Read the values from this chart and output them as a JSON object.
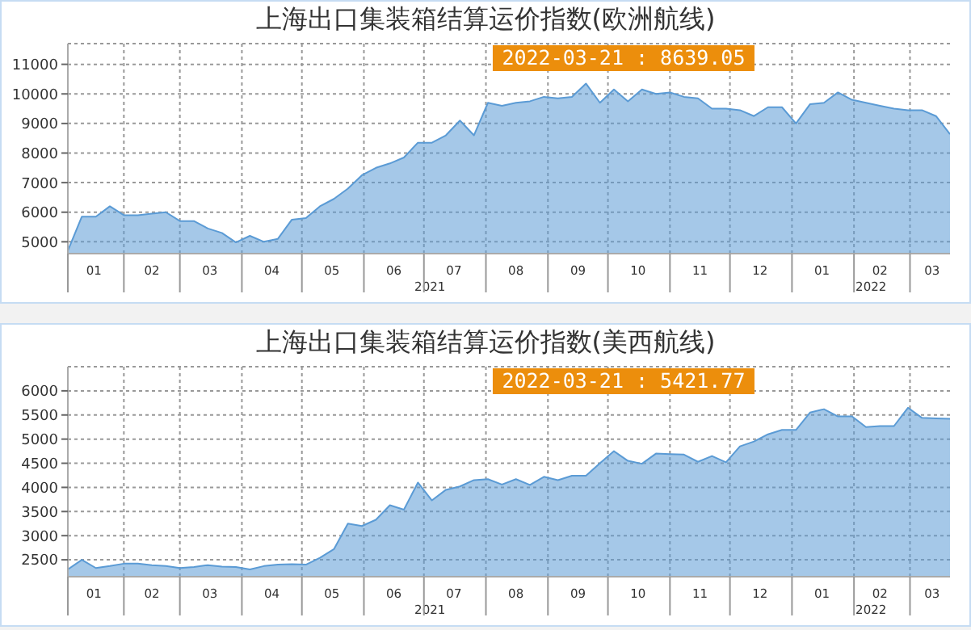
{
  "chart_data": [
    {
      "type": "area",
      "title": "上海出口集装箱结算运价指数(欧洲航线)",
      "x": [
        "2021-01-04",
        "2021-01-11",
        "2021-01-18",
        "2021-01-25",
        "2021-02-01",
        "2021-02-08",
        "2021-02-15",
        "2021-02-22",
        "2021-03-01",
        "2021-03-08",
        "2021-03-15",
        "2021-03-22",
        "2021-03-29",
        "2021-04-05",
        "2021-04-12",
        "2021-04-19",
        "2021-04-26",
        "2021-05-03",
        "2021-05-10",
        "2021-05-17",
        "2021-05-24",
        "2021-05-31",
        "2021-06-07",
        "2021-06-14",
        "2021-06-21",
        "2021-06-28",
        "2021-07-05",
        "2021-07-12",
        "2021-07-19",
        "2021-07-26",
        "2021-08-02",
        "2021-08-09",
        "2021-08-16",
        "2021-08-23",
        "2021-08-30",
        "2021-09-06",
        "2021-09-13",
        "2021-09-20",
        "2021-09-27",
        "2021-10-04",
        "2021-10-11",
        "2021-10-18",
        "2021-10-25",
        "2021-11-01",
        "2021-11-08",
        "2021-11-15",
        "2021-11-22",
        "2021-11-29",
        "2021-12-06",
        "2021-12-13",
        "2021-12-20",
        "2021-12-27",
        "2022-01-03",
        "2022-01-10",
        "2022-01-17",
        "2022-01-24",
        "2022-01-31",
        "2022-02-07",
        "2022-02-14",
        "2022-02-21",
        "2022-02-28",
        "2022-03-07",
        "2022-03-14",
        "2022-03-21"
      ],
      "series": [
        {
          "color": "#5b9bd5",
          "values": [
            4700,
            5850,
            5850,
            6200,
            5900,
            5900,
            5950,
            6000,
            5700,
            5700,
            5450,
            5300,
            4980,
            5200,
            5000,
            5100,
            5750,
            5800,
            6200,
            6450,
            6800,
            7250,
            7500,
            7650,
            7850,
            8350,
            8350,
            8600,
            9100,
            8600,
            9700,
            9600,
            9700,
            9750,
            9900,
            9850,
            9900,
            10350,
            9700,
            10150,
            9750,
            10150,
            10000,
            10050,
            9900,
            9850,
            9500,
            9500,
            9450,
            9250,
            9550,
            9550,
            9000,
            9650,
            9700,
            10050,
            9800,
            9700,
            9600,
            9500,
            9450,
            9450,
            9250,
            8639.05
          ]
        }
      ],
      "xlim": [
        "2021-01-04",
        "2022-03-21"
      ],
      "xticks": [
        {
          "value": "2021-01-04",
          "label": null
        },
        {
          "value": "2021-01-17",
          "label": "01"
        },
        {
          "value": "2021-02-01",
          "label": null
        },
        {
          "value": "2021-02-15",
          "label": "02"
        },
        {
          "value": "2021-03-01",
          "label": null
        },
        {
          "value": "2021-03-16",
          "label": "03"
        },
        {
          "value": "2021-04-01",
          "label": null
        },
        {
          "value": "2021-04-16",
          "label": "04"
        },
        {
          "value": "2021-05-01",
          "label": null
        },
        {
          "value": "2021-05-16",
          "label": "05"
        },
        {
          "value": "2021-06-01",
          "label": null
        },
        {
          "value": "2021-06-16",
          "label": "06"
        },
        {
          "value": "2021-07-01",
          "label": null
        },
        {
          "value": "2021-07-16",
          "label": "07"
        },
        {
          "value": "2021-08-01",
          "label": null
        },
        {
          "value": "2021-08-16",
          "label": "08"
        },
        {
          "value": "2021-09-01",
          "label": null
        },
        {
          "value": "2021-09-16",
          "label": "09"
        },
        {
          "value": "2021-10-01",
          "label": null
        },
        {
          "value": "2021-10-16",
          "label": "10"
        },
        {
          "value": "2021-11-01",
          "label": null
        },
        {
          "value": "2021-11-16",
          "label": "11"
        },
        {
          "value": "2021-12-01",
          "label": null
        },
        {
          "value": "2021-12-16",
          "label": "12"
        },
        {
          "value": "2022-01-01",
          "label": null
        },
        {
          "value": "2022-01-16",
          "label": "01"
        },
        {
          "value": "2022-02-01",
          "label": null
        },
        {
          "value": "2022-02-14",
          "label": "02"
        },
        {
          "value": "2022-03-01",
          "label": null
        },
        {
          "value": "2022-03-12",
          "label": "03"
        }
      ],
      "ylim": [
        4600,
        11700
      ],
      "yticks": [
        5000,
        6000,
        7000,
        8000,
        9000,
        10000,
        11000
      ],
      "grid": true,
      "annotations": [
        "2022-03-21 : 8639.05",
        "2021",
        "2022"
      ]
    },
    {
      "type": "area",
      "title": "上海出口集装箱结算运价指数(美西航线)",
      "x": [
        "2021-01-04",
        "2021-01-11",
        "2021-01-18",
        "2021-01-25",
        "2021-02-01",
        "2021-02-08",
        "2021-02-15",
        "2021-02-22",
        "2021-03-01",
        "2021-03-08",
        "2021-03-15",
        "2021-03-22",
        "2021-03-29",
        "2021-04-05",
        "2021-04-12",
        "2021-04-19",
        "2021-04-26",
        "2021-05-03",
        "2021-05-10",
        "2021-05-17",
        "2021-05-24",
        "2021-05-31",
        "2021-06-07",
        "2021-06-14",
        "2021-06-21",
        "2021-06-28",
        "2021-07-05",
        "2021-07-12",
        "2021-07-19",
        "2021-07-26",
        "2021-08-02",
        "2021-08-09",
        "2021-08-16",
        "2021-08-23",
        "2021-08-30",
        "2021-09-06",
        "2021-09-13",
        "2021-09-20",
        "2021-09-27",
        "2021-10-04",
        "2021-10-11",
        "2021-10-18",
        "2021-10-25",
        "2021-11-01",
        "2021-11-08",
        "2021-11-15",
        "2021-11-22",
        "2021-11-29",
        "2021-12-06",
        "2021-12-13",
        "2021-12-20",
        "2021-12-27",
        "2022-01-03",
        "2022-01-10",
        "2022-01-17",
        "2022-01-24",
        "2022-01-31",
        "2022-02-07",
        "2022-02-14",
        "2022-02-21",
        "2022-02-28",
        "2022-03-07",
        "2022-03-14",
        "2022-03-21"
      ],
      "series": [
        {
          "color": "#5b9bd5",
          "values": [
            2300,
            2500,
            2330,
            2370,
            2420,
            2420,
            2390,
            2370,
            2330,
            2350,
            2390,
            2360,
            2350,
            2300,
            2370,
            2400,
            2410,
            2400,
            2540,
            2720,
            3250,
            3200,
            3330,
            3630,
            3540,
            4100,
            3730,
            3950,
            4020,
            4150,
            4170,
            4060,
            4170,
            4050,
            4220,
            4150,
            4240,
            4240,
            4500,
            4750,
            4550,
            4490,
            4700,
            4690,
            4680,
            4530,
            4650,
            4520,
            4850,
            4950,
            5100,
            5190,
            5190,
            5550,
            5620,
            5470,
            5470,
            5250,
            5270,
            5270,
            5650,
            5440,
            5430,
            5421.77
          ]
        }
      ],
      "xlim": [
        "2021-01-04",
        "2022-03-21"
      ],
      "xticks": [
        {
          "value": "2021-01-04",
          "label": null
        },
        {
          "value": "2021-01-17",
          "label": "01"
        },
        {
          "value": "2021-02-01",
          "label": null
        },
        {
          "value": "2021-02-15",
          "label": "02"
        },
        {
          "value": "2021-03-01",
          "label": null
        },
        {
          "value": "2021-03-16",
          "label": "03"
        },
        {
          "value": "2021-04-01",
          "label": null
        },
        {
          "value": "2021-04-16",
          "label": "04"
        },
        {
          "value": "2021-05-01",
          "label": null
        },
        {
          "value": "2021-05-16",
          "label": "05"
        },
        {
          "value": "2021-06-01",
          "label": null
        },
        {
          "value": "2021-06-16",
          "label": "06"
        },
        {
          "value": "2021-07-01",
          "label": null
        },
        {
          "value": "2021-07-16",
          "label": "07"
        },
        {
          "value": "2021-08-01",
          "label": null
        },
        {
          "value": "2021-08-16",
          "label": "08"
        },
        {
          "value": "2021-09-01",
          "label": null
        },
        {
          "value": "2021-09-16",
          "label": "09"
        },
        {
          "value": "2021-10-01",
          "label": null
        },
        {
          "value": "2021-10-16",
          "label": "10"
        },
        {
          "value": "2021-11-01",
          "label": null
        },
        {
          "value": "2021-11-16",
          "label": "11"
        },
        {
          "value": "2021-12-01",
          "label": null
        },
        {
          "value": "2021-12-16",
          "label": "12"
        },
        {
          "value": "2022-01-01",
          "label": null
        },
        {
          "value": "2022-01-16",
          "label": "01"
        },
        {
          "value": "2022-02-01",
          "label": null
        },
        {
          "value": "2022-02-14",
          "label": "02"
        },
        {
          "value": "2022-03-01",
          "label": null
        },
        {
          "value": "2022-03-12",
          "label": "03"
        }
      ],
      "ylim": [
        2150,
        6500
      ],
      "yticks": [
        2500,
        3000,
        3500,
        4000,
        4500,
        5000,
        5500,
        6000
      ],
      "grid": true,
      "annotations": [
        "2022-03-21 : 5421.77",
        "2021",
        "2022"
      ]
    }
  ]
}
